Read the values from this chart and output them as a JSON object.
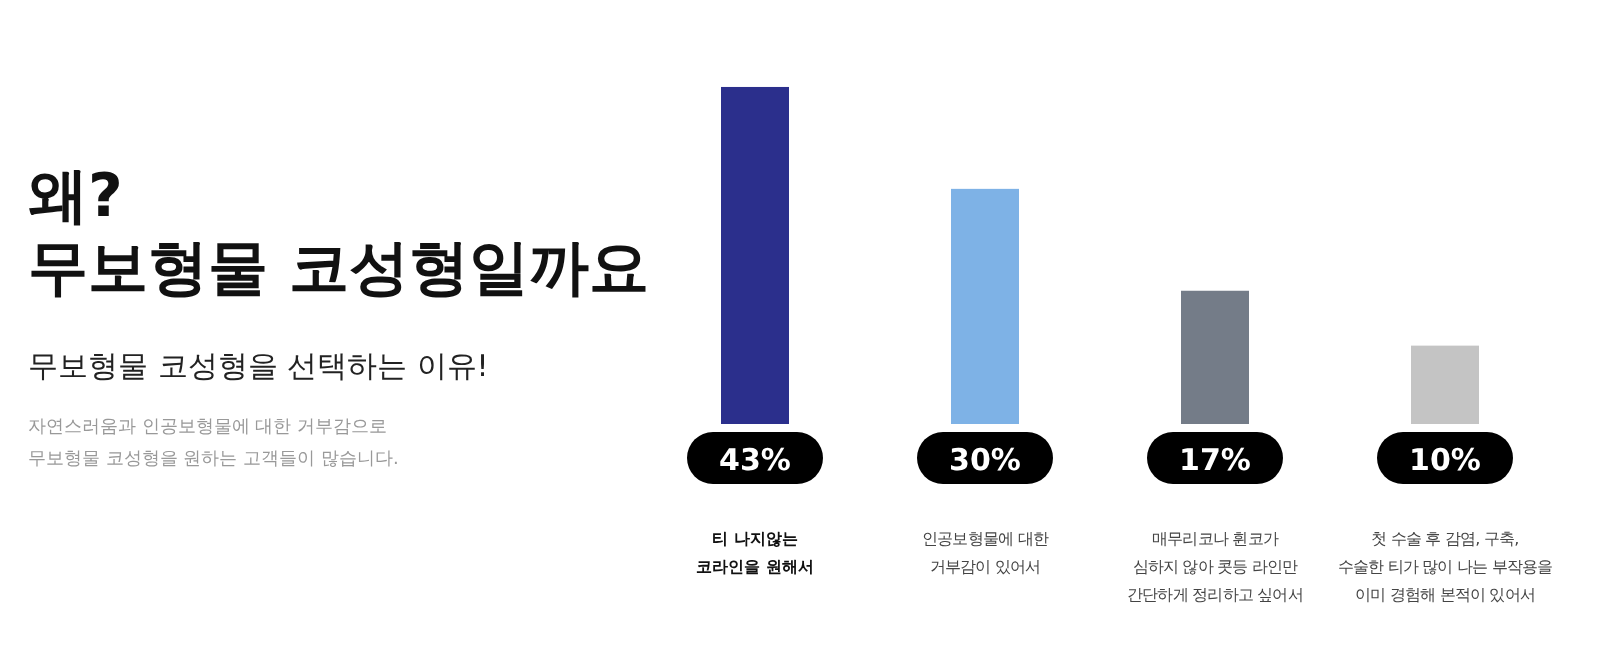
{
  "chart_data": {
    "type": "bar",
    "title": "왜?\n무보형물 코성형일까요",
    "subtitle": "무보형물 코성형을 선택하는 이유!",
    "annotations": [
      "자연스러움과 인공보형물에 대한 거부감으로\n무보형물 코성형을 원하는 고객들이 많습니다."
    ],
    "categories": [
      "티 나지않는\n코라인을 원해서",
      "인공보형물에 대한\n거부감이 있어서",
      "매무리코나 휜코가\n심하지 않아 콧등 라인만\n간단하게 정리하고 싶어서",
      "첫 수술 후 감염, 구축,\n수술한 티가 많이 나는 부작용을\n이미 경험해 본적이 있어서"
    ],
    "values": [
      43,
      30,
      17,
      10
    ],
    "colors": [
      "#2b2f8c",
      "#7eb2e6",
      "#747c88",
      "#c4c4c4"
    ],
    "value_labels": [
      "43%",
      "30%",
      "17%",
      "10%"
    ],
    "relative": false
  }
}
